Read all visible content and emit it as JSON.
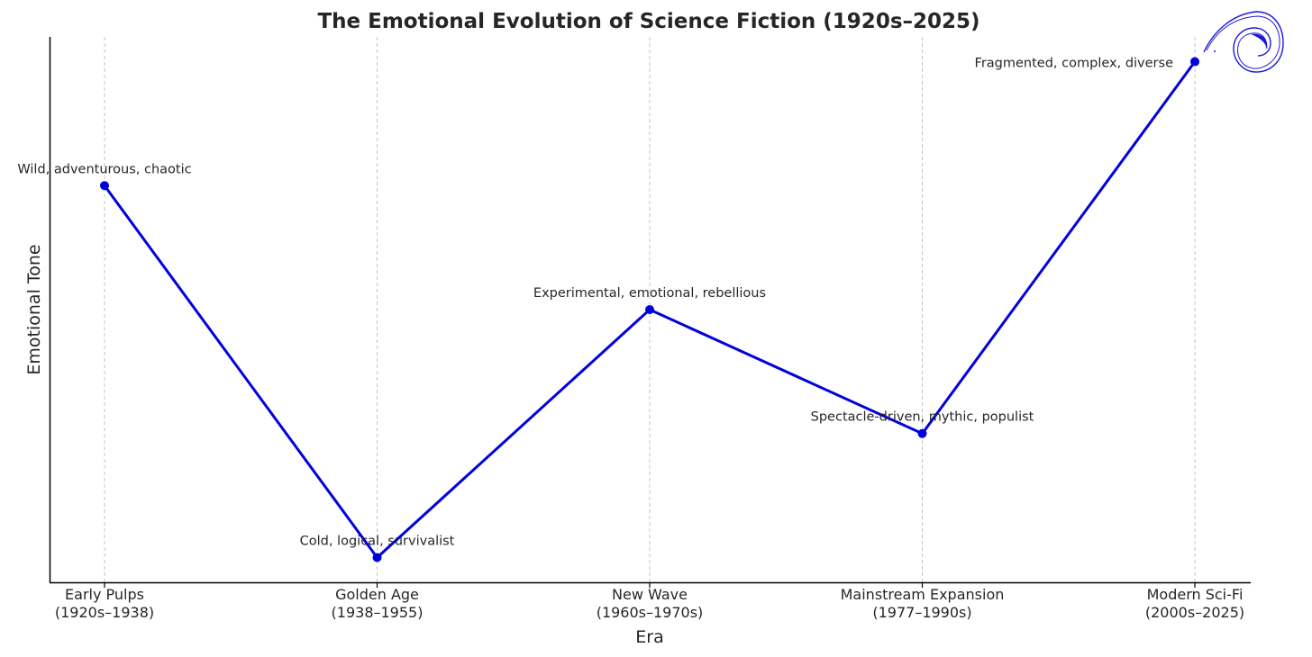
{
  "chart_data": {
    "type": "line",
    "title": "The Emotional Evolution of Science Fiction (1920s–2025)",
    "xlabel": "Era",
    "ylabel": "Emotional Tone",
    "categories": [
      [
        "Early Pulps",
        "(1920s–1938)"
      ],
      [
        "Golden Age",
        "(1938–1955)"
      ],
      [
        "New Wave",
        "(1960s–1970s)"
      ],
      [
        "Mainstream Expansion",
        "(1977–1990s)"
      ],
      [
        "Modern Sci-Fi",
        "(2000s–2025)"
      ]
    ],
    "series": [
      {
        "values": [
          8,
          2,
          6,
          4,
          10
        ],
        "color": "#0000dd"
      }
    ],
    "annotations": [
      "Wild, adventurous, chaotic",
      "Cold, logical, survivalist",
      "Experimental, emotional, rebellious",
      "Spectacle-driven, mythic, populist",
      "Fragmented, complex, diverse"
    ],
    "ylim": [
      1.6,
      10.4
    ],
    "grid": "vertical-dashed",
    "y_tick_labels": "none",
    "line_color": "#0000dd",
    "grid_color": "#c4c4c4"
  },
  "logo": {
    "icon": "spiral-logo-icon",
    "color": "#1a1ad8"
  }
}
